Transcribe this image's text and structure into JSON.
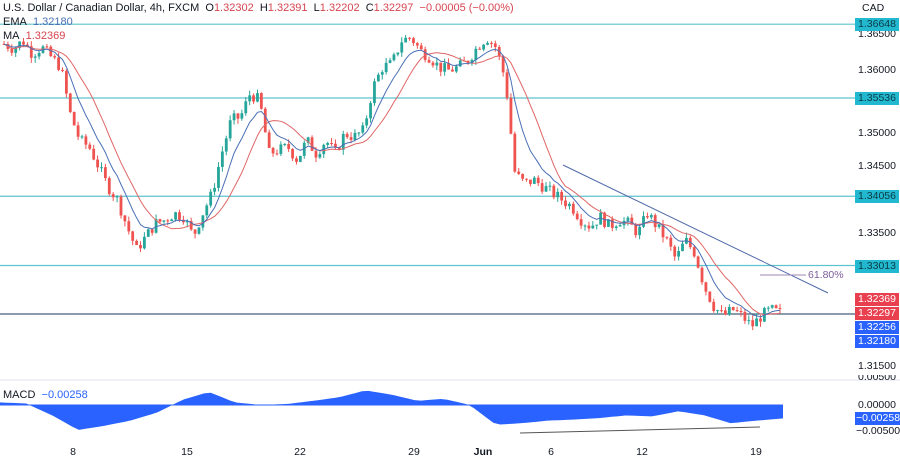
{
  "header": {
    "symbol": "U.S. Dollar / Canadian Dollar, 4h, FXCM",
    "ohlc": {
      "o_label": "O",
      "o": "1.32302",
      "h_label": "H",
      "h": "1.32391",
      "l_label": "L",
      "l": "1.32202",
      "c_label": "C",
      "c": "1.32297",
      "change": "−0.00005 (−0.00%)"
    },
    "ema_label": "EMA",
    "ema_value": "1.32180",
    "ma_label": "MA",
    "ma_value": "1.32369"
  },
  "currency": "CAD",
  "price_axis": {
    "ticks": [
      "1.36500",
      "1.36000",
      "1.35000",
      "1.34500",
      "1.33500",
      "1.31500"
    ],
    "levels": [
      {
        "label": "1.36648",
        "value": 1.36648
      },
      {
        "label": "1.35536",
        "value": 1.35536
      },
      {
        "label": "1.34056",
        "value": 1.34056
      },
      {
        "label": "1.33013",
        "value": 1.33013
      }
    ],
    "tags": {
      "ma": "1.32369",
      "close": "1.32297",
      "other": "1.32256",
      "ema": "1.32180"
    }
  },
  "fib_label": "61.80%",
  "macd": {
    "label": "MACD",
    "value": "−0.00258",
    "ticks": [
      "0.00500",
      "0.00000",
      "−0.00500"
    ],
    "tag": "−0.00258"
  },
  "time_axis": {
    "labels": [
      "8",
      "15",
      "22",
      "29",
      "Jun",
      "6",
      "12",
      "19"
    ]
  },
  "colors": {
    "up": "#26a69a",
    "down": "#ef5350",
    "ema": "#4a6fb5",
    "ma": "#e06666",
    "level": "#5fc3cf",
    "macd": "#2962ff",
    "trend": "#4f6aa8"
  },
  "chart_data": {
    "type": "candlestick",
    "title": "U.S. Dollar / Canadian Dollar, 4h, FXCM",
    "xlabel": "",
    "ylabel": "CAD",
    "ylim": [
      1.312,
      1.3675
    ],
    "x_ticks": [
      "8",
      "15",
      "22",
      "29",
      "Jun",
      "6",
      "12",
      "19"
    ],
    "horizontal_levels": [
      1.36648,
      1.35536,
      1.34056,
      1.33013,
      1.32297
    ],
    "last": {
      "open": 1.32302,
      "high": 1.32391,
      "low": 1.32202,
      "close": 1.32297
    },
    "indicators": {
      "EMA": 1.3218,
      "MA": 1.32369,
      "MACD": -0.00258
    },
    "series": [
      {
        "name": "close",
        "values": [
          1.3635,
          1.3628,
          1.364,
          1.362,
          1.363,
          1.3615,
          1.36,
          1.353,
          1.349,
          1.348,
          1.345,
          1.342,
          1.34,
          1.336,
          1.3325,
          1.3345,
          1.3365,
          1.337,
          1.338,
          1.3375,
          1.3345,
          1.338,
          1.341,
          1.347,
          1.352,
          1.3525,
          1.356,
          1.355,
          1.347,
          1.3475,
          1.348,
          1.346,
          1.349,
          1.347,
          1.349,
          1.347,
          1.35,
          1.3495,
          1.3505,
          1.357,
          1.36,
          1.3605,
          1.364,
          1.3645,
          1.3625,
          1.3615,
          1.36,
          1.3595,
          1.36,
          1.361,
          1.363,
          1.3645,
          1.363,
          1.358,
          1.344,
          1.3425,
          1.343,
          1.342,
          1.341,
          1.34,
          1.339,
          1.337,
          1.336,
          1.3375,
          1.336,
          1.337,
          1.3365,
          1.335,
          1.338,
          1.336,
          1.334,
          1.331,
          1.334,
          1.332,
          1.327,
          1.324,
          1.3225,
          1.3235,
          1.3225,
          1.321,
          1.3225,
          1.3235,
          1.32297
        ]
      },
      {
        "name": "EMA",
        "values": "smooth short-period average following price"
      },
      {
        "name": "MA",
        "values": "smooth longer-period average lagging price"
      }
    ],
    "macd_series": {
      "values_approx": [
        0.0005,
        0.0003,
        -0.002,
        -0.0048,
        -0.004,
        -0.003,
        -0.0015,
        0.001,
        0.0025,
        0.0005,
        0.0,
        0.0002,
        0.0008,
        0.0015,
        0.0028,
        0.002,
        0.0008,
        0.0012,
        0.0,
        -0.0038,
        -0.0035,
        -0.003,
        -0.0028,
        -0.0025,
        -0.002,
        -0.0022,
        -0.0012,
        -0.002,
        -0.0035,
        -0.003,
        -0.00258
      ]
    }
  }
}
